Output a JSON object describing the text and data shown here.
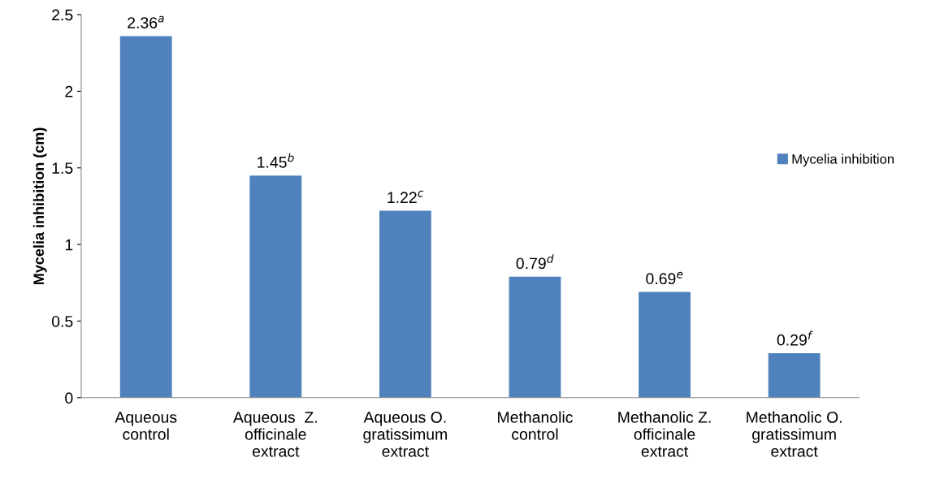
{
  "chart_data": {
    "type": "bar",
    "ylabel": "Mycelia inhibition (cm)",
    "categories": [
      "Aqueous\ncontrol",
      "Aqueous  Z.\nofficinale\nextract",
      "Aqueous O.\ngratissimum\nextract",
      "Methanolic\ncontrol",
      "Methanolic Z.\nofficinale\nextract",
      "Methanolic O.\ngratissimum\nextract"
    ],
    "series": [
      {
        "name": "Mycelia inhibition",
        "color": "#4f81bd",
        "values": [
          2.36,
          1.45,
          1.22,
          0.79,
          0.69,
          0.29
        ],
        "value_labels": [
          "2.36$^{a}$",
          "1.45$^{b}$",
          "1.22$^{c}$",
          "0.79$^{d}$",
          "0.69$^{e}$",
          "0.29$^{f}$"
        ]
      }
    ],
    "ylim": [
      0,
      2.5
    ],
    "yticks": [
      0,
      0.5,
      1,
      1.5,
      2,
      2.5
    ],
    "grid": false,
    "legend": "right"
  }
}
